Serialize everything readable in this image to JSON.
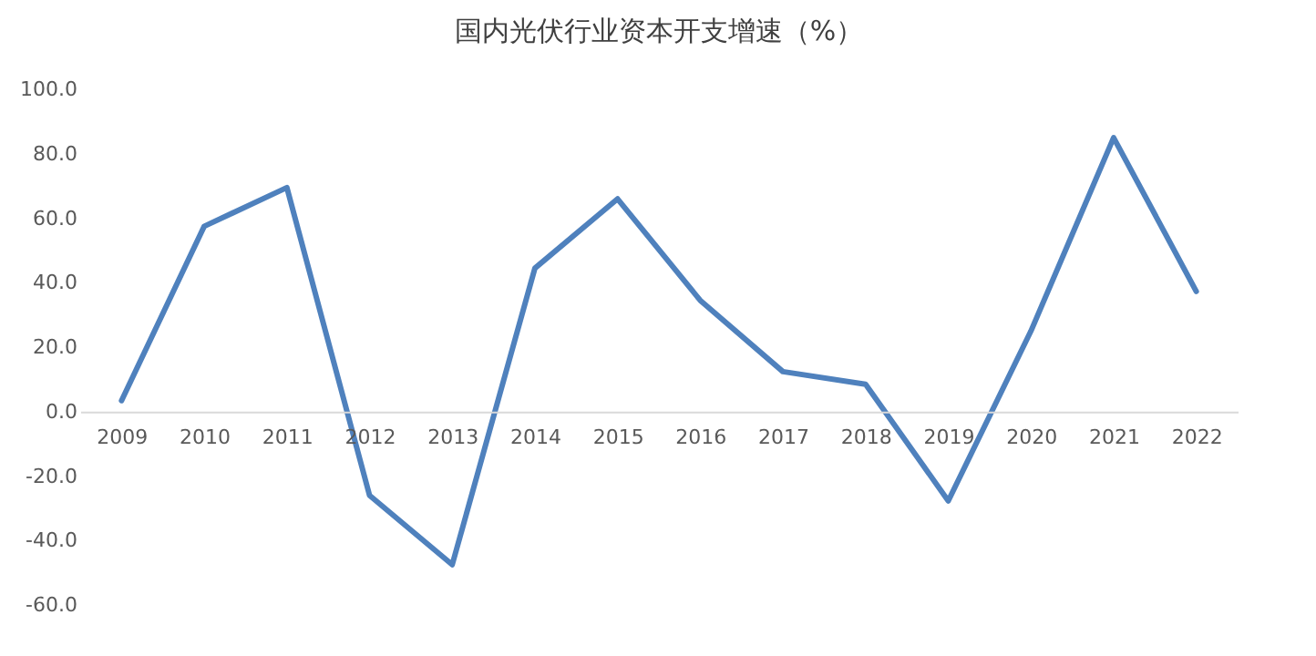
{
  "chart_data": {
    "type": "line",
    "title": "国内光伏行业资本开支增速（%）",
    "categories": [
      "2009",
      "2010",
      "2011",
      "2012",
      "2013",
      "2014",
      "2015",
      "2016",
      "2017",
      "2018",
      "2019",
      "2020",
      "2021",
      "2022"
    ],
    "series": [
      {
        "color": "#4f81bd",
        "values": [
          3.4,
          57.5,
          69.5,
          -26,
          -47.5,
          44.5,
          66,
          34.5,
          12.4,
          8.5,
          -27.7,
          25,
          85,
          37.3
        ]
      }
    ],
    "ylim": [
      -60,
      100
    ],
    "yticks": [
      {
        "value": -60,
        "label": "-60.0"
      },
      {
        "value": -40,
        "label": "-40.0"
      },
      {
        "value": -20,
        "label": "-20.0"
      },
      {
        "value": 0,
        "label": "0.0"
      },
      {
        "value": 20,
        "label": "20.0"
      },
      {
        "value": 40,
        "label": "40.0"
      },
      {
        "value": 60,
        "label": "60.0"
      },
      {
        "value": 80,
        "label": "80.0"
      },
      {
        "value": 100,
        "label": "100.0"
      }
    ],
    "grid": false,
    "legend": false,
    "marker": "none",
    "line_style": "solid"
  }
}
